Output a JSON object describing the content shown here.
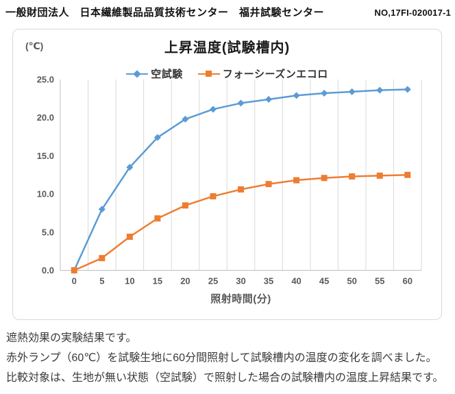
{
  "header": {
    "organization": "一般財団法人　日本繊維製品品質技術センター　福井試験センター",
    "report_no": "NO,17FI-020017-1"
  },
  "chart": {
    "unit_label": "(℃)",
    "title": "上昇温度(試験槽内)"
  },
  "chart_data": {
    "type": "line",
    "x": [
      0,
      5,
      10,
      15,
      20,
      25,
      30,
      35,
      40,
      45,
      50,
      55,
      60
    ],
    "xlabel": "照射時間(分)",
    "ylabel": "(℃)",
    "ylim": [
      0,
      25
    ],
    "y_ticks": [
      "0.0",
      "5.0",
      "10.0",
      "15.0",
      "20.0",
      "25.0"
    ],
    "grid": "vertical-only",
    "legend_position": "top-center",
    "series": [
      {
        "name": "空試験",
        "color": "#5B9BD5",
        "marker": "diamond",
        "values": [
          0.0,
          8.0,
          13.5,
          17.4,
          19.8,
          21.1,
          21.9,
          22.4,
          22.9,
          23.2,
          23.4,
          23.6,
          23.7
        ]
      },
      {
        "name": "フォーシーズンエコロ",
        "color": "#ED7D31",
        "marker": "square",
        "values": [
          0.0,
          1.6,
          4.4,
          6.8,
          8.5,
          9.7,
          10.6,
          11.3,
          11.8,
          12.1,
          12.3,
          12.4,
          12.5
        ]
      }
    ],
    "style": {
      "gridline_color": "#D9D9D9",
      "axis_color": "#BFBFBF",
      "tick_label_color": "#595959"
    }
  },
  "notes": {
    "lines": [
      "遮熱効果の実験結果です。",
      "赤外ランプ（60℃）を試験生地に60分間照射して試験槽内の温度の変化を調べました。",
      "比較対象は、生地が無い状態（空試験）で照射した場合の試験槽内の温度上昇結果です。"
    ]
  }
}
